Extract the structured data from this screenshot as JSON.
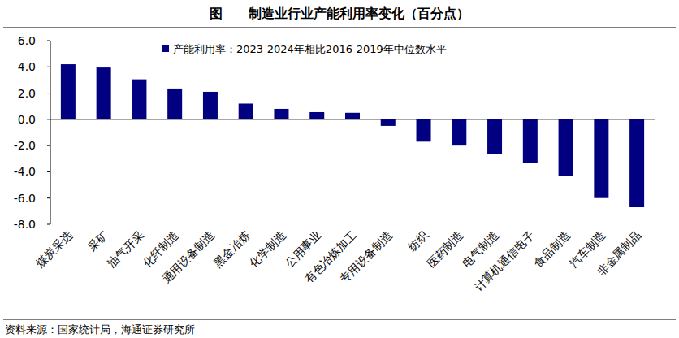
{
  "chart_data": {
    "type": "bar",
    "title": "图　　制造业行业产能利用率变化（百分点）",
    "categories": [
      "煤炭采选",
      "采矿",
      "油气开采",
      "化纤制造",
      "通用设备制造",
      "黑金冶炼",
      "化学制造",
      "公用事业",
      "有色冶炼加工",
      "专用设备制造",
      "纺织",
      "医药制造",
      "电气制造",
      "计算机通信电子",
      "食品制造",
      "汽车制造",
      "非金属制品"
    ],
    "series": [
      {
        "name": "产能利用率：2023-2024年相比2016-2019年中位数水平",
        "color": "#000080",
        "values": [
          4.2,
          3.95,
          3.05,
          2.35,
          2.1,
          1.2,
          0.8,
          0.55,
          0.5,
          -0.5,
          -1.7,
          -2.0,
          -2.65,
          -3.3,
          -4.3,
          -6.0,
          -6.7
        ]
      }
    ],
    "ylim": [
      -8,
      6
    ],
    "yticks": [
      {
        "value": -8,
        "label": "-8.0"
      },
      {
        "value": -6,
        "label": "-6.0"
      },
      {
        "value": -4,
        "label": "-4.0"
      },
      {
        "value": -2,
        "label": "-2.0"
      },
      {
        "value": 0,
        "label": "0.0"
      },
      {
        "value": 2,
        "label": "2.0"
      },
      {
        "value": 4,
        "label": "4.0"
      },
      {
        "value": 6,
        "label": "6.0"
      }
    ],
    "grid": false,
    "legend": "top",
    "annotations": [
      "资料来源：国家统计局，海通证券研究所"
    ]
  }
}
